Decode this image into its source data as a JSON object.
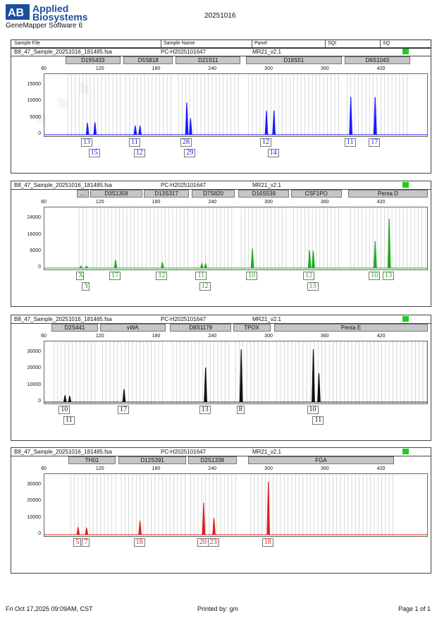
{
  "header": {
    "brand_line1": "Applied",
    "brand_line2": "Biosystems",
    "software": "GeneMapper Software 6",
    "title": "20251016"
  },
  "columns": [
    "Sample File",
    "Sample Name",
    "Panel",
    "SQI",
    "SQ"
  ],
  "colors": {
    "blue": "#1a1aff",
    "green": "#22a822",
    "black": "#111111",
    "red": "#e02020",
    "quality": "#1fcc1f"
  },
  "chart_data": [
    {
      "type": "line",
      "dye": "blue",
      "sample_file": "B8_47_Sample_20251016_181485.fsa",
      "sample_name": "PC-H2025101647",
      "panel": "MR21_v2.1",
      "x_ticks": [
        "60",
        "120",
        "180",
        "240",
        "300",
        "360",
        "420"
      ],
      "xlim": [
        60,
        470
      ],
      "y_ticks": [
        "15000",
        "10000",
        "5000",
        "0"
      ],
      "ylim": [
        0,
        18000
      ],
      "loci": [
        {
          "name": "D19S433",
          "start": 83,
          "end": 142
        },
        {
          "name": "D5S818",
          "start": 145,
          "end": 198
        },
        {
          "name": "D21S11",
          "start": 201,
          "end": 270
        },
        {
          "name": "D18S51",
          "start": 276,
          "end": 378
        },
        {
          "name": "D6S1043",
          "start": 381,
          "end": 451
        }
      ],
      "peaks": [
        {
          "size": 106,
          "height": 3600
        },
        {
          "size": 114,
          "height": 3700
        },
        {
          "size": 157,
          "height": 2800
        },
        {
          "size": 162,
          "height": 2700
        },
        {
          "size": 212,
          "height": 9800
        },
        {
          "size": 216,
          "height": 5000
        },
        {
          "size": 297,
          "height": 7300
        },
        {
          "size": 305,
          "height": 7300
        },
        {
          "size": 387,
          "height": 11500
        },
        {
          "size": 413,
          "height": 11400
        }
      ],
      "alleles_row1": [
        {
          "label": "13",
          "size": 106
        },
        {
          "label": "11",
          "size": 157
        },
        {
          "label": "28",
          "size": 212
        },
        {
          "label": "12",
          "size": 297
        },
        {
          "label": "11",
          "size": 387
        },
        {
          "label": "17",
          "size": 413
        }
      ],
      "alleles_row2": [
        {
          "label": "15",
          "size": 114
        },
        {
          "label": "12",
          "size": 162
        },
        {
          "label": "29",
          "size": 216
        },
        {
          "label": "14",
          "size": 305
        }
      ]
    },
    {
      "type": "line",
      "dye": "green",
      "sample_file": "B8_47_Sample_20251016_181485.fsa",
      "sample_name": "PC-H2025101647",
      "panel": "MR21_v2.1",
      "x_ticks": [
        "60",
        "120",
        "180",
        "240",
        "300",
        "360",
        "420"
      ],
      "xlim": [
        60,
        470
      ],
      "y_ticks": [
        "24000",
        "16000",
        "8000",
        "0"
      ],
      "ylim": [
        0,
        29000
      ],
      "loci": [
        {
          "name": "...",
          "start": 95,
          "end": 108
        },
        {
          "name": "D3S1358",
          "start": 110,
          "end": 165
        },
        {
          "name": "D13S317",
          "start": 167,
          "end": 215
        },
        {
          "name": "D7S820",
          "start": 218,
          "end": 264
        },
        {
          "name": "D16S539",
          "start": 268,
          "end": 322
        },
        {
          "name": "CSF1PO",
          "start": 324,
          "end": 378
        },
        {
          "name": "Penta D",
          "start": 385,
          "end": 470
        }
      ],
      "peaks": [
        {
          "size": 99,
          "height": 1000
        },
        {
          "size": 105,
          "height": 900
        },
        {
          "size": 136,
          "height": 4000
        },
        {
          "size": 186,
          "height": 2800
        },
        {
          "size": 228,
          "height": 2200
        },
        {
          "size": 232,
          "height": 2100
        },
        {
          "size": 282,
          "height": 9600
        },
        {
          "size": 343,
          "height": 8800
        },
        {
          "size": 347,
          "height": 8500
        },
        {
          "size": 413,
          "height": 13100
        },
        {
          "size": 428,
          "height": 24000
        }
      ],
      "alleles_row1": [
        {
          "label": "X",
          "size": 99
        },
        {
          "label": "17",
          "size": 136
        },
        {
          "label": "12",
          "size": 186
        },
        {
          "label": "11",
          "size": 228
        },
        {
          "label": "10",
          "size": 282
        },
        {
          "label": "12",
          "size": 343
        },
        {
          "label": "10",
          "size": 413
        },
        {
          "label": "13",
          "size": 428
        }
      ],
      "alleles_row2": [
        {
          "label": "Y",
          "size": 105
        },
        {
          "label": "12",
          "size": 232
        },
        {
          "label": "13",
          "size": 347
        }
      ]
    },
    {
      "type": "line",
      "dye": "black",
      "sample_file": "B8_47_Sample_20251016_181485.fsa",
      "sample_name": "PC-H2025101647",
      "panel": "MR21_v2.1",
      "x_ticks": [
        "60",
        "120",
        "180",
        "240",
        "300",
        "360",
        "420"
      ],
      "xlim": [
        60,
        470
      ],
      "y_ticks": [
        "30000",
        "20000",
        "10000",
        "0"
      ],
      "ylim": [
        0,
        36000
      ],
      "loci": [
        {
          "name": "D2S441",
          "start": 68,
          "end": 118
        },
        {
          "name": "vWA",
          "start": 120,
          "end": 190
        },
        {
          "name": "D8S1179",
          "start": 195,
          "end": 260
        },
        {
          "name": "TPOX",
          "start": 262,
          "end": 302
        },
        {
          "name": "Penta E",
          "start": 306,
          "end": 470
        }
      ],
      "peaks": [
        {
          "size": 82,
          "height": 4200
        },
        {
          "size": 87,
          "height": 3700
        },
        {
          "size": 145,
          "height": 7800
        },
        {
          "size": 232,
          "height": 21000
        },
        {
          "size": 270,
          "height": 32000
        },
        {
          "size": 347,
          "height": 32000
        },
        {
          "size": 353,
          "height": 17500
        }
      ],
      "alleles_row1": [
        {
          "label": "10",
          "size": 82
        },
        {
          "label": "17",
          "size": 145
        },
        {
          "label": "13",
          "size": 232
        },
        {
          "label": "8",
          "size": 270
        },
        {
          "label": "10",
          "size": 347
        }
      ],
      "alleles_row2": [
        {
          "label": "11",
          "size": 87
        },
        {
          "label": "11",
          "size": 353
        }
      ]
    },
    {
      "type": "line",
      "dye": "red",
      "sample_file": "B8_47_Sample_20251016_181485.fsa",
      "sample_name": "PC-H2025101647",
      "panel": "MR21_v2.1",
      "x_ticks": [
        "60",
        "120",
        "180",
        "240",
        "300",
        "360",
        "420"
      ],
      "xlim": [
        60,
        470
      ],
      "y_ticks": [
        "30000",
        "20000",
        "10000",
        "0"
      ],
      "ylim": [
        0,
        36000
      ],
      "loci": [
        {
          "name": "TH01",
          "start": 86,
          "end": 137
        },
        {
          "name": "D12S391",
          "start": 140,
          "end": 212
        },
        {
          "name": "D2S1338",
          "start": 214,
          "end": 266
        },
        {
          "name": "FGA",
          "start": 278,
          "end": 434
        }
      ],
      "peaks": [
        {
          "size": 96,
          "height": 4600
        },
        {
          "size": 105,
          "height": 4300
        },
        {
          "size": 162,
          "height": 8500
        },
        {
          "size": 230,
          "height": 19500
        },
        {
          "size": 241,
          "height": 10000
        },
        {
          "size": 299,
          "height": 32000
        }
      ],
      "alleles_row1": [
        {
          "label": "5",
          "size": 96
        },
        {
          "label": "7",
          "size": 105
        },
        {
          "label": "18",
          "size": 162
        },
        {
          "label": "20",
          "size": 230
        },
        {
          "label": "23",
          "size": 241
        },
        {
          "label": "18",
          "size": 299
        }
      ],
      "alleles_row2": []
    }
  ],
  "footer": {
    "date": "Fri Oct 17,2025 09:09AM, CST",
    "printed_by": "Printed by: gm",
    "page": "Page 1 of 1"
  }
}
